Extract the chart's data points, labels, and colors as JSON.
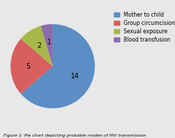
{
  "values": [
    14,
    5,
    2,
    1
  ],
  "labels": [
    "14",
    "5",
    "2",
    "1"
  ],
  "legend_labels": [
    "Mother to child",
    "Group circumcision",
    "Sexual exposure",
    "Blood transfusion"
  ],
  "colors": [
    "#5B8EC4",
    "#D95F5F",
    "#A8B84B",
    "#8B6BAE"
  ],
  "startangle": 90,
  "caption": "Figure 1: Pie chart depicting probable modes of HIV transmission",
  "bg_color": "#e8e8e8",
  "label_fontsize": 7,
  "legend_fontsize": 5.5
}
